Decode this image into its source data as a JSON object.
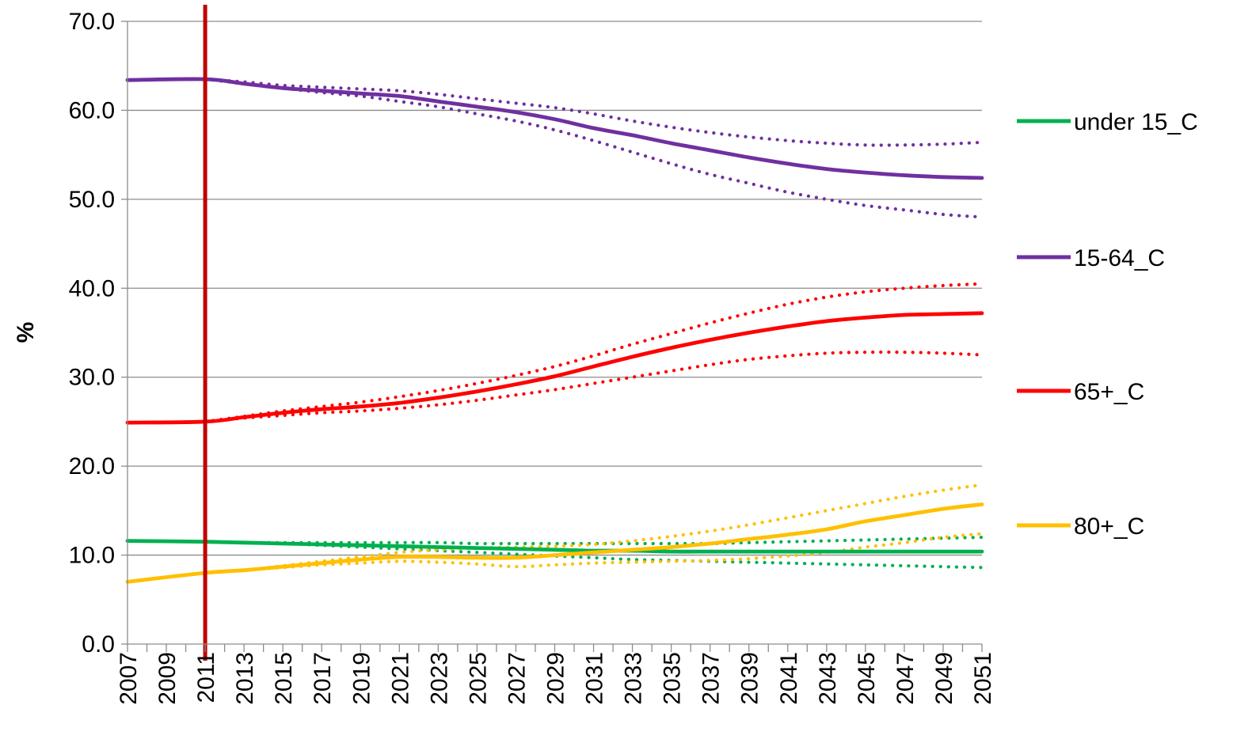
{
  "chart_data": {
    "type": "line",
    "ylabel": "%",
    "xlabel": "",
    "ylim": [
      0,
      70
    ],
    "yticks": [
      0,
      10,
      20,
      30,
      40,
      50,
      60,
      70
    ],
    "ytick_labels": [
      "0.0",
      "10.0",
      "20.0",
      "30.0",
      "40.0",
      "50.0",
      "60.0",
      "70.0"
    ],
    "xlim": [
      2007,
      2051
    ],
    "xtick_labels": [
      "2007",
      "2009",
      "2011",
      "2013",
      "2015",
      "2017",
      "2019",
      "2021",
      "2023",
      "2025",
      "2027",
      "2029",
      "2031",
      "2033",
      "2035",
      "2037",
      "2039",
      "2041",
      "2043",
      "2045",
      "2047",
      "2049",
      "2051"
    ],
    "grid": "horizontal",
    "legend_position": "right",
    "marker_line": {
      "x": 2011,
      "color": "#c00000"
    },
    "x_knots": [
      2007,
      2011,
      2013,
      2015,
      2017,
      2019,
      2021,
      2023,
      2025,
      2027,
      2029,
      2031,
      2033,
      2035,
      2037,
      2039,
      2041,
      2043,
      2045,
      2047,
      2049,
      2051
    ],
    "series": [
      {
        "name": "under 15_C",
        "color": "#00b050",
        "central": [
          11.6,
          11.5,
          11.4,
          11.3,
          11.2,
          11.1,
          11.0,
          10.9,
          10.8,
          10.7,
          10.6,
          10.5,
          10.5,
          10.4,
          10.4,
          10.4,
          10.4,
          10.4,
          10.4,
          10.4,
          10.4,
          10.4
        ],
        "upper": [
          null,
          11.5,
          11.4,
          11.4,
          11.4,
          11.4,
          11.4,
          11.4,
          11.3,
          11.3,
          11.3,
          11.3,
          11.3,
          11.3,
          11.3,
          11.4,
          11.5,
          11.6,
          11.7,
          11.8,
          11.9,
          12.0
        ],
        "lower": [
          null,
          11.5,
          11.4,
          11.3,
          11.1,
          10.9,
          10.7,
          10.5,
          10.3,
          10.1,
          9.9,
          9.7,
          9.5,
          9.4,
          9.3,
          9.2,
          9.1,
          9.0,
          8.9,
          8.8,
          8.7,
          8.6
        ]
      },
      {
        "name": "15-64_C",
        "color": "#7030a0",
        "central": [
          63.4,
          63.5,
          63.0,
          62.5,
          62.2,
          61.9,
          61.6,
          61.0,
          60.4,
          59.8,
          59.0,
          58.0,
          57.2,
          56.3,
          55.5,
          54.7,
          54.0,
          53.4,
          53.0,
          52.7,
          52.5,
          52.4
        ],
        "upper": [
          null,
          63.5,
          63.2,
          62.8,
          62.6,
          62.4,
          62.2,
          61.8,
          61.3,
          60.8,
          60.3,
          59.6,
          58.8,
          58.1,
          57.5,
          57.0,
          56.6,
          56.3,
          56.1,
          56.1,
          56.2,
          56.4
        ],
        "lower": [
          null,
          63.5,
          63.0,
          62.5,
          62.0,
          61.6,
          61.0,
          60.4,
          59.6,
          58.8,
          57.8,
          56.6,
          55.3,
          54.0,
          52.8,
          51.8,
          50.8,
          50.0,
          49.3,
          48.8,
          48.3,
          48.0
        ]
      },
      {
        "name": "65+_C",
        "color": "#ff0000",
        "central": [
          24.9,
          25.0,
          25.5,
          26.0,
          26.4,
          26.7,
          27.1,
          27.7,
          28.4,
          29.2,
          30.1,
          31.2,
          32.3,
          33.3,
          34.2,
          35.0,
          35.7,
          36.3,
          36.7,
          37.0,
          37.1,
          37.2
        ],
        "upper": [
          null,
          25.0,
          25.6,
          26.2,
          26.7,
          27.2,
          27.8,
          28.5,
          29.3,
          30.2,
          31.2,
          32.4,
          33.7,
          34.9,
          36.1,
          37.2,
          38.2,
          39.0,
          39.6,
          40.0,
          40.3,
          40.5
        ],
        "lower": [
          null,
          25.0,
          25.4,
          25.7,
          26.0,
          26.2,
          26.5,
          26.9,
          27.4,
          28.0,
          28.6,
          29.3,
          30.0,
          30.7,
          31.4,
          32.0,
          32.4,
          32.7,
          32.8,
          32.8,
          32.7,
          32.5
        ]
      },
      {
        "name": "80+_C",
        "color": "#ffc000",
        "central": [
          7.0,
          8.0,
          8.3,
          8.7,
          9.1,
          9.5,
          9.8,
          9.8,
          9.7,
          9.7,
          10.0,
          10.3,
          10.6,
          10.9,
          11.3,
          11.8,
          12.3,
          12.9,
          13.8,
          14.5,
          15.2,
          15.7
        ],
        "upper": [
          null,
          8.0,
          8.3,
          8.8,
          9.3,
          9.8,
          10.3,
          10.6,
          10.8,
          10.9,
          11.0,
          11.2,
          11.6,
          12.1,
          12.7,
          13.4,
          14.2,
          15.0,
          15.8,
          16.6,
          17.3,
          17.9
        ],
        "lower": [
          null,
          8.0,
          8.3,
          8.6,
          8.9,
          9.1,
          9.3,
          9.2,
          9.0,
          8.7,
          8.9,
          9.1,
          9.2,
          9.3,
          9.4,
          9.6,
          9.9,
          10.3,
          10.9,
          11.4,
          12.0,
          12.4
        ]
      }
    ]
  }
}
